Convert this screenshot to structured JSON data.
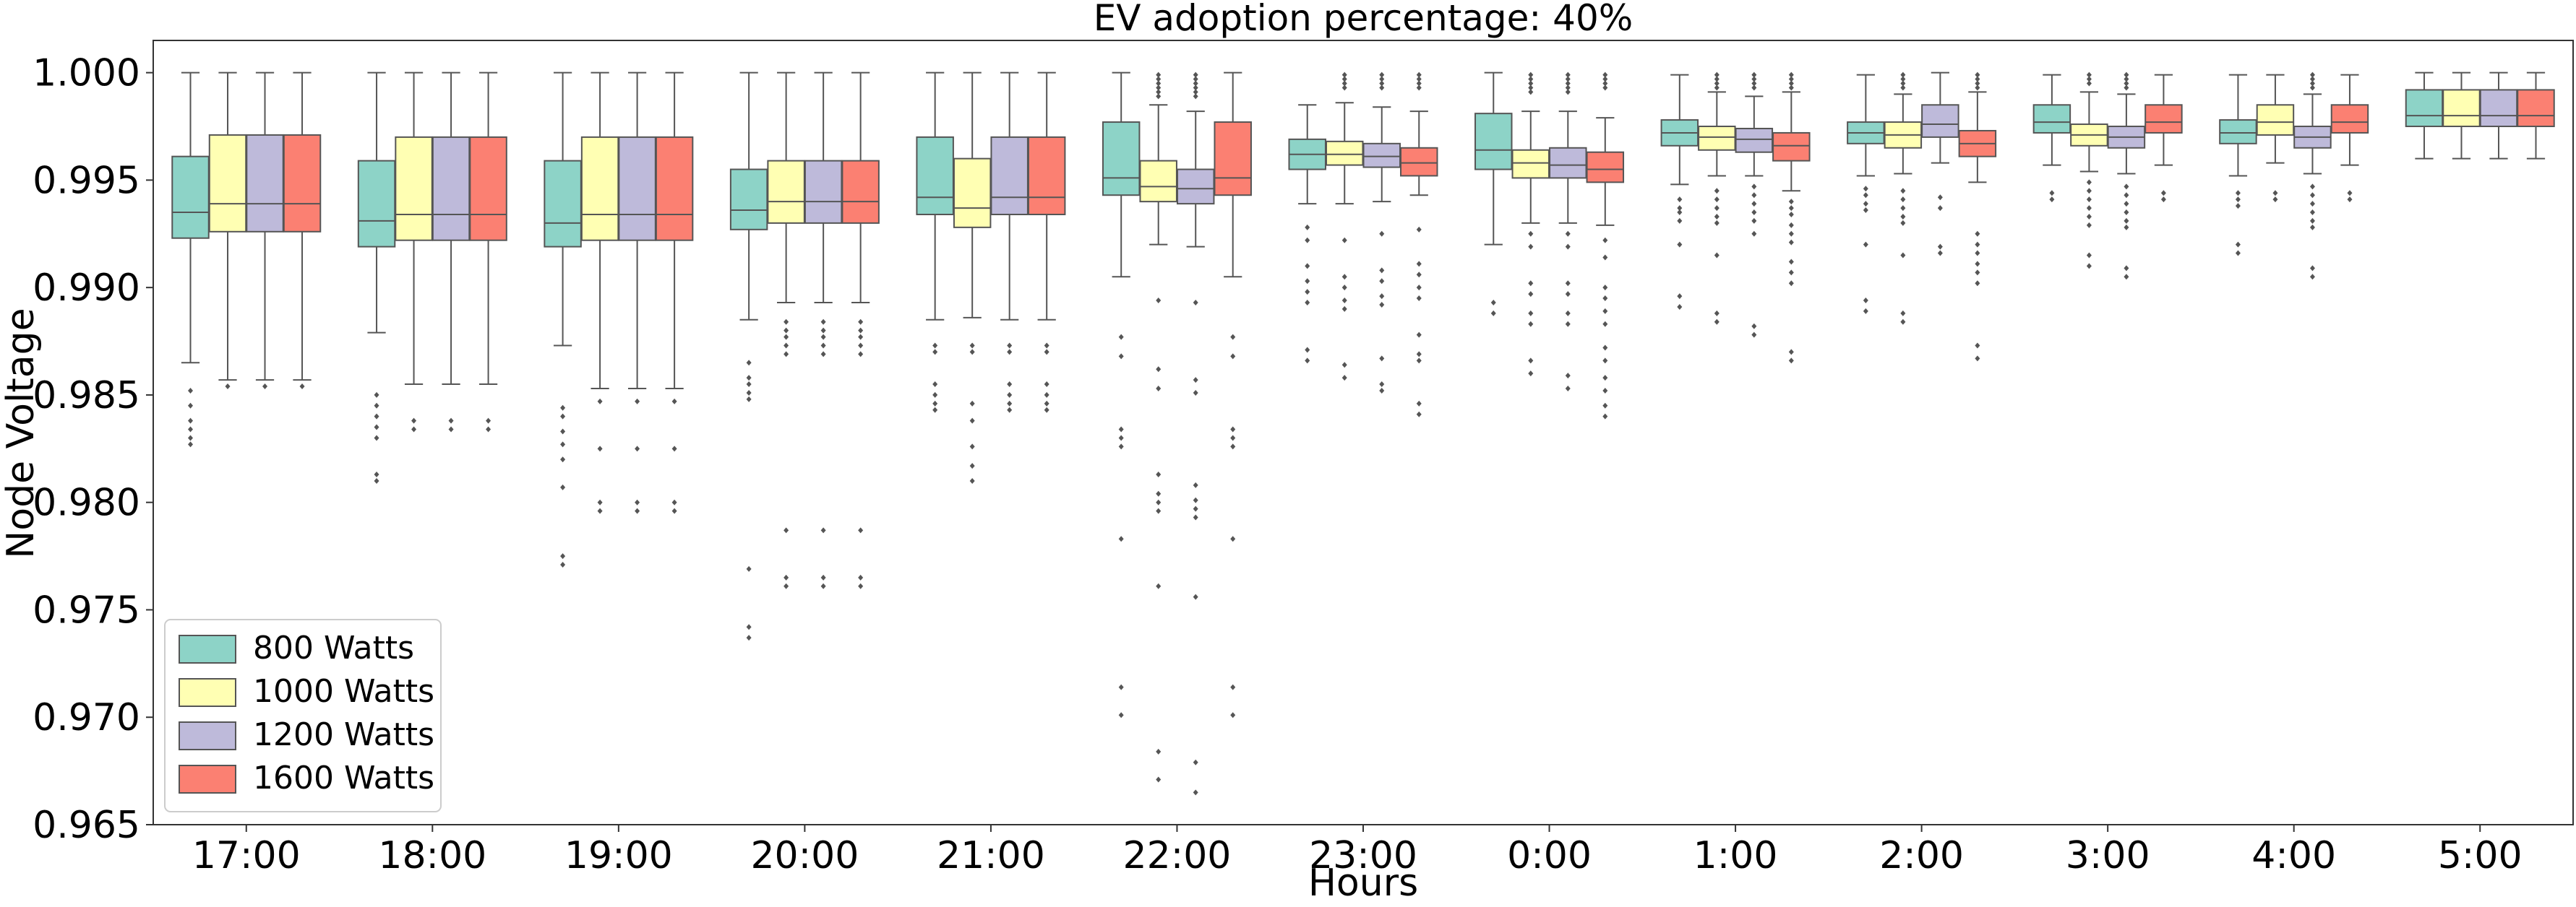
{
  "chart_data": {
    "type": "box",
    "title": "EV adoption percentage: 40%",
    "xlabel": "Hours",
    "ylabel": "Node Voltage",
    "ylim": [
      0.965,
      1.0015
    ],
    "yticks": [
      "0.965",
      "0.970",
      "0.975",
      "0.980",
      "0.985",
      "0.990",
      "0.995",
      "1.000"
    ],
    "categories": [
      "17:00",
      "18:00",
      "19:00",
      "20:00",
      "21:00",
      "22:00",
      "23:00",
      "0:00",
      "1:00",
      "2:00",
      "3:00",
      "4:00",
      "5:00"
    ],
    "legend_placement": "lower-left",
    "grid": false,
    "series": [
      {
        "name": "800 Watts",
        "color": "#8dd3c7",
        "boxes": [
          {
            "whislo": 0.9865,
            "q1": 0.9923,
            "med": 0.9935,
            "q3": 0.9961,
            "whishi": 1.0,
            "fliers": [
              0.9852,
              0.9845,
              0.9838,
              0.9834,
              0.983,
              0.9827
            ]
          },
          {
            "whislo": 0.9879,
            "q1": 0.9919,
            "med": 0.9931,
            "q3": 0.9959,
            "whishi": 1.0,
            "fliers": [
              0.985,
              0.9845,
              0.984,
              0.9835,
              0.983,
              0.9813,
              0.981
            ]
          },
          {
            "whislo": 0.9873,
            "q1": 0.9919,
            "med": 0.993,
            "q3": 0.9959,
            "whishi": 1.0,
            "fliers": [
              0.9844,
              0.984,
              0.9833,
              0.9827,
              0.982,
              0.9807,
              0.9775,
              0.9771
            ]
          },
          {
            "whislo": 0.9885,
            "q1": 0.9927,
            "med": 0.9936,
            "q3": 0.9955,
            "whishi": 1.0,
            "fliers": [
              0.9865,
              0.9858,
              0.9855,
              0.9851,
              0.9848,
              0.9769,
              0.9742,
              0.9737
            ]
          },
          {
            "whislo": 0.9885,
            "q1": 0.9934,
            "med": 0.9942,
            "q3": 0.997,
            "whishi": 1.0,
            "fliers": [
              0.9873,
              0.987,
              0.9855,
              0.985,
              0.9846,
              0.9843
            ]
          },
          {
            "whislo": 0.9905,
            "q1": 0.9943,
            "med": 0.9951,
            "q3": 0.9977,
            "whishi": 1.0,
            "fliers": [
              0.9877,
              0.9868,
              0.9834,
              0.983,
              0.9826,
              0.9783,
              0.9714,
              0.9701
            ]
          },
          {
            "whislo": 0.9939,
            "q1": 0.9955,
            "med": 0.9962,
            "q3": 0.9969,
            "whishi": 0.9985,
            "fliers": [
              0.9928,
              0.9922,
              0.991,
              0.9903,
              0.9898,
              0.9893,
              0.9871,
              0.9866
            ]
          },
          {
            "whislo": 0.992,
            "q1": 0.9955,
            "med": 0.9964,
            "q3": 0.9981,
            "whishi": 1.0,
            "fliers": [
              0.9893,
              0.9888
            ]
          },
          {
            "whislo": 0.9948,
            "q1": 0.9966,
            "med": 0.9972,
            "q3": 0.9978,
            "whishi": 0.9999,
            "fliers": [
              0.9941,
              0.9937,
              0.9935,
              0.9931,
              0.992,
              0.9896,
              0.9891
            ]
          },
          {
            "whislo": 0.9952,
            "q1": 0.9967,
            "med": 0.9972,
            "q3": 0.9977,
            "whishi": 0.9999,
            "fliers": [
              0.9946,
              0.9943,
              0.9939,
              0.9936,
              0.992,
              0.9894,
              0.9889
            ]
          },
          {
            "whislo": 0.9957,
            "q1": 0.9972,
            "med": 0.9977,
            "q3": 0.9985,
            "whishi": 0.9999,
            "fliers": [
              0.9944,
              0.9941
            ]
          },
          {
            "whislo": 0.9952,
            "q1": 0.9967,
            "med": 0.9972,
            "q3": 0.9978,
            "whishi": 0.9999,
            "fliers": [
              0.9944,
              0.9941,
              0.9938,
              0.992,
              0.9916
            ]
          },
          {
            "whislo": 0.996,
            "q1": 0.9975,
            "med": 0.998,
            "q3": 0.9992,
            "whishi": 1.0,
            "fliers": []
          }
        ]
      },
      {
        "name": "1000 Watts",
        "color": "#ffffb3",
        "boxes": [
          {
            "whislo": 0.9857,
            "q1": 0.9926,
            "med": 0.9939,
            "q3": 0.9971,
            "whishi": 1.0,
            "fliers": [
              0.9854
            ]
          },
          {
            "whislo": 0.9855,
            "q1": 0.9922,
            "med": 0.9934,
            "q3": 0.997,
            "whishi": 1.0,
            "fliers": [
              0.9838,
              0.9834
            ]
          },
          {
            "whislo": 0.9853,
            "q1": 0.9922,
            "med": 0.9934,
            "q3": 0.997,
            "whishi": 1.0,
            "fliers": [
              0.9847,
              0.9825,
              0.98,
              0.9796
            ]
          },
          {
            "whislo": 0.9893,
            "q1": 0.993,
            "med": 0.994,
            "q3": 0.9959,
            "whishi": 1.0,
            "fliers": [
              0.9884,
              0.988,
              0.9877,
              0.9873,
              0.9869,
              0.9787,
              0.9765,
              0.9761
            ]
          },
          {
            "whislo": 0.9886,
            "q1": 0.9928,
            "med": 0.9937,
            "q3": 0.996,
            "whishi": 1.0,
            "fliers": [
              0.9873,
              0.987,
              0.9846,
              0.9838,
              0.9826,
              0.9817,
              0.981
            ]
          },
          {
            "whislo": 0.992,
            "q1": 0.994,
            "med": 0.9947,
            "q3": 0.9959,
            "whishi": 0.9985,
            "fliers": [
              0.9999,
              0.9997,
              0.9995,
              0.9993,
              0.9991,
              0.9989,
              0.9894,
              0.9862,
              0.9853,
              0.9813,
              0.9804,
              0.98,
              0.9796,
              0.9761,
              0.9684,
              0.9671
            ]
          },
          {
            "whislo": 0.9939,
            "q1": 0.9957,
            "med": 0.9962,
            "q3": 0.9968,
            "whishi": 0.9986,
            "fliers": [
              0.9999,
              0.9997,
              0.9995,
              0.9993,
              0.9922,
              0.9905,
              0.99,
              0.9894,
              0.989,
              0.9864,
              0.9858
            ]
          },
          {
            "whislo": 0.993,
            "q1": 0.9951,
            "med": 0.9958,
            "q3": 0.9964,
            "whishi": 0.9982,
            "fliers": [
              0.9999,
              0.9997,
              0.9995,
              0.9993,
              0.9991,
              0.9925,
              0.9919,
              0.9902,
              0.9897,
              0.9888,
              0.9883,
              0.9866,
              0.986
            ]
          },
          {
            "whislo": 0.9952,
            "q1": 0.9964,
            "med": 0.997,
            "q3": 0.9975,
            "whishi": 0.9991,
            "fliers": [
              0.9999,
              0.9997,
              0.9995,
              0.9993,
              0.9945,
              0.9941,
              0.9937,
              0.9933,
              0.993,
              0.9915,
              0.9888,
              0.9884
            ]
          },
          {
            "whislo": 0.9953,
            "q1": 0.9965,
            "med": 0.9971,
            "q3": 0.9977,
            "whishi": 0.999,
            "fliers": [
              0.9999,
              0.9997,
              0.9995,
              0.9993,
              0.9945,
              0.9941,
              0.9937,
              0.9933,
              0.993,
              0.9915,
              0.9888,
              0.9884
            ]
          },
          {
            "whislo": 0.9954,
            "q1": 0.9966,
            "med": 0.9971,
            "q3": 0.9976,
            "whishi": 0.9991,
            "fliers": [
              0.9999,
              0.9997,
              0.9995,
              0.9949,
              0.9945,
              0.9941,
              0.9937,
              0.9933,
              0.9929,
              0.9915,
              0.991
            ]
          },
          {
            "whislo": 0.9958,
            "q1": 0.9971,
            "med": 0.9977,
            "q3": 0.9985,
            "whishi": 0.9999,
            "fliers": [
              0.9944,
              0.9941
            ]
          },
          {
            "whislo": 0.996,
            "q1": 0.9975,
            "med": 0.998,
            "q3": 0.9992,
            "whishi": 1.0,
            "fliers": []
          }
        ]
      },
      {
        "name": "1200 Watts",
        "color": "#bebada",
        "boxes": [
          {
            "whislo": 0.9857,
            "q1": 0.9926,
            "med": 0.9939,
            "q3": 0.9971,
            "whishi": 1.0,
            "fliers": [
              0.9854
            ]
          },
          {
            "whislo": 0.9855,
            "q1": 0.9922,
            "med": 0.9934,
            "q3": 0.997,
            "whishi": 1.0,
            "fliers": [
              0.9838,
              0.9834
            ]
          },
          {
            "whislo": 0.9853,
            "q1": 0.9922,
            "med": 0.9934,
            "q3": 0.997,
            "whishi": 1.0,
            "fliers": [
              0.9847,
              0.9825,
              0.98,
              0.9796
            ]
          },
          {
            "whislo": 0.9893,
            "q1": 0.993,
            "med": 0.994,
            "q3": 0.9959,
            "whishi": 1.0,
            "fliers": [
              0.9884,
              0.988,
              0.9877,
              0.9873,
              0.9869,
              0.9787,
              0.9765,
              0.9761
            ]
          },
          {
            "whislo": 0.9885,
            "q1": 0.9934,
            "med": 0.9942,
            "q3": 0.997,
            "whishi": 1.0,
            "fliers": [
              0.9873,
              0.987,
              0.9855,
              0.985,
              0.9846,
              0.9843
            ]
          },
          {
            "whislo": 0.9919,
            "q1": 0.9939,
            "med": 0.9946,
            "q3": 0.9955,
            "whishi": 0.9982,
            "fliers": [
              0.9999,
              0.9997,
              0.9995,
              0.9993,
              0.9991,
              0.9989,
              0.9893,
              0.9857,
              0.9851,
              0.9808,
              0.9801,
              0.9797,
              0.9793,
              0.9756,
              0.9679,
              0.9665
            ]
          },
          {
            "whislo": 0.994,
            "q1": 0.9956,
            "med": 0.9961,
            "q3": 0.9967,
            "whishi": 0.9984,
            "fliers": [
              0.9999,
              0.9997,
              0.9995,
              0.9993,
              0.9925,
              0.9908,
              0.9903,
              0.9896,
              0.9892,
              0.9867,
              0.9855,
              0.9852
            ]
          },
          {
            "whislo": 0.993,
            "q1": 0.9951,
            "med": 0.9957,
            "q3": 0.9965,
            "whishi": 0.9982,
            "fliers": [
              0.9999,
              0.9997,
              0.9995,
              0.9993,
              0.9991,
              0.9925,
              0.9919,
              0.9902,
              0.9897,
              0.9888,
              0.9883,
              0.9859,
              0.9853
            ]
          },
          {
            "whislo": 0.9952,
            "q1": 0.9963,
            "med": 0.9969,
            "q3": 0.9974,
            "whishi": 0.9989,
            "fliers": [
              0.9999,
              0.9997,
              0.9995,
              0.9993,
              0.9947,
              0.9943,
              0.9939,
              0.9935,
              0.9931,
              0.9925,
              0.9882,
              0.9878
            ]
          },
          {
            "whislo": 0.9958,
            "q1": 0.997,
            "med": 0.9976,
            "q3": 0.9985,
            "whishi": 1.0,
            "fliers": [
              0.9942,
              0.9937,
              0.9919,
              0.9916
            ]
          },
          {
            "whislo": 0.9953,
            "q1": 0.9965,
            "med": 0.997,
            "q3": 0.9975,
            "whishi": 0.999,
            "fliers": [
              0.9999,
              0.9997,
              0.9995,
              0.9993,
              0.9947,
              0.9943,
              0.9939,
              0.9935,
              0.9931,
              0.9928,
              0.9909,
              0.9905
            ]
          },
          {
            "whislo": 0.9953,
            "q1": 0.9965,
            "med": 0.997,
            "q3": 0.9975,
            "whishi": 0.999,
            "fliers": [
              0.9999,
              0.9997,
              0.9995,
              0.9993,
              0.9947,
              0.9943,
              0.9939,
              0.9935,
              0.9931,
              0.9928,
              0.9909,
              0.9905
            ]
          },
          {
            "whislo": 0.996,
            "q1": 0.9975,
            "med": 0.998,
            "q3": 0.9992,
            "whishi": 1.0,
            "fliers": []
          }
        ]
      },
      {
        "name": "1600 Watts",
        "color": "#fb8072",
        "boxes": [
          {
            "whislo": 0.9857,
            "q1": 0.9926,
            "med": 0.9939,
            "q3": 0.9971,
            "whishi": 1.0,
            "fliers": [
              0.9854
            ]
          },
          {
            "whislo": 0.9855,
            "q1": 0.9922,
            "med": 0.9934,
            "q3": 0.997,
            "whishi": 1.0,
            "fliers": [
              0.9838,
              0.9834
            ]
          },
          {
            "whislo": 0.9853,
            "q1": 0.9922,
            "med": 0.9934,
            "q3": 0.997,
            "whishi": 1.0,
            "fliers": [
              0.9847,
              0.9825,
              0.98,
              0.9796
            ]
          },
          {
            "whislo": 0.9893,
            "q1": 0.993,
            "med": 0.994,
            "q3": 0.9959,
            "whishi": 1.0,
            "fliers": [
              0.9884,
              0.988,
              0.9877,
              0.9873,
              0.9869,
              0.9787,
              0.9765,
              0.9761
            ]
          },
          {
            "whislo": 0.9885,
            "q1": 0.9934,
            "med": 0.9942,
            "q3": 0.997,
            "whishi": 1.0,
            "fliers": [
              0.9873,
              0.987,
              0.9855,
              0.985,
              0.9846,
              0.9843
            ]
          },
          {
            "whislo": 0.9905,
            "q1": 0.9943,
            "med": 0.9951,
            "q3": 0.9977,
            "whishi": 1.0,
            "fliers": [
              0.9877,
              0.9868,
              0.9834,
              0.983,
              0.9826,
              0.9783,
              0.9714,
              0.9701
            ]
          },
          {
            "whislo": 0.9943,
            "q1": 0.9952,
            "med": 0.9958,
            "q3": 0.9965,
            "whishi": 0.9982,
            "fliers": [
              0.9999,
              0.9997,
              0.9995,
              0.9993,
              0.9927,
              0.9911,
              0.9906,
              0.99,
              0.9895,
              0.9878,
              0.9869,
              0.9866,
              0.9846,
              0.9841
            ]
          },
          {
            "whislo": 0.9929,
            "q1": 0.9949,
            "med": 0.9955,
            "q3": 0.9963,
            "whishi": 0.9979,
            "fliers": [
              0.9999,
              0.9997,
              0.9995,
              0.9993,
              0.9922,
              0.9914,
              0.99,
              0.9895,
              0.9889,
              0.9883,
              0.9872,
              0.9866,
              0.9858,
              0.9852,
              0.9845,
              0.984
            ]
          },
          {
            "whislo": 0.9945,
            "q1": 0.9959,
            "med": 0.9966,
            "q3": 0.9972,
            "whishi": 0.9991,
            "fliers": [
              0.9999,
              0.9997,
              0.9995,
              0.9993,
              0.994,
              0.9937,
              0.9934,
              0.9929,
              0.9925,
              0.9921,
              0.9912,
              0.9907,
              0.9902,
              0.987,
              0.9866
            ]
          },
          {
            "whislo": 0.9949,
            "q1": 0.9961,
            "med": 0.9967,
            "q3": 0.9973,
            "whishi": 0.9991,
            "fliers": [
              0.9999,
              0.9997,
              0.9995,
              0.9993,
              0.9925,
              0.992,
              0.9916,
              0.9911,
              0.9907,
              0.9902,
              0.9873,
              0.9867
            ]
          },
          {
            "whislo": 0.9957,
            "q1": 0.9972,
            "med": 0.9977,
            "q3": 0.9985,
            "whishi": 0.9999,
            "fliers": [
              0.9944,
              0.9941
            ]
          },
          {
            "whislo": 0.9957,
            "q1": 0.9972,
            "med": 0.9977,
            "q3": 0.9985,
            "whishi": 0.9999,
            "fliers": [
              0.9944,
              0.9941
            ]
          },
          {
            "whislo": 0.996,
            "q1": 0.9975,
            "med": 0.998,
            "q3": 0.9992,
            "whishi": 1.0,
            "fliers": []
          }
        ]
      }
    ]
  }
}
